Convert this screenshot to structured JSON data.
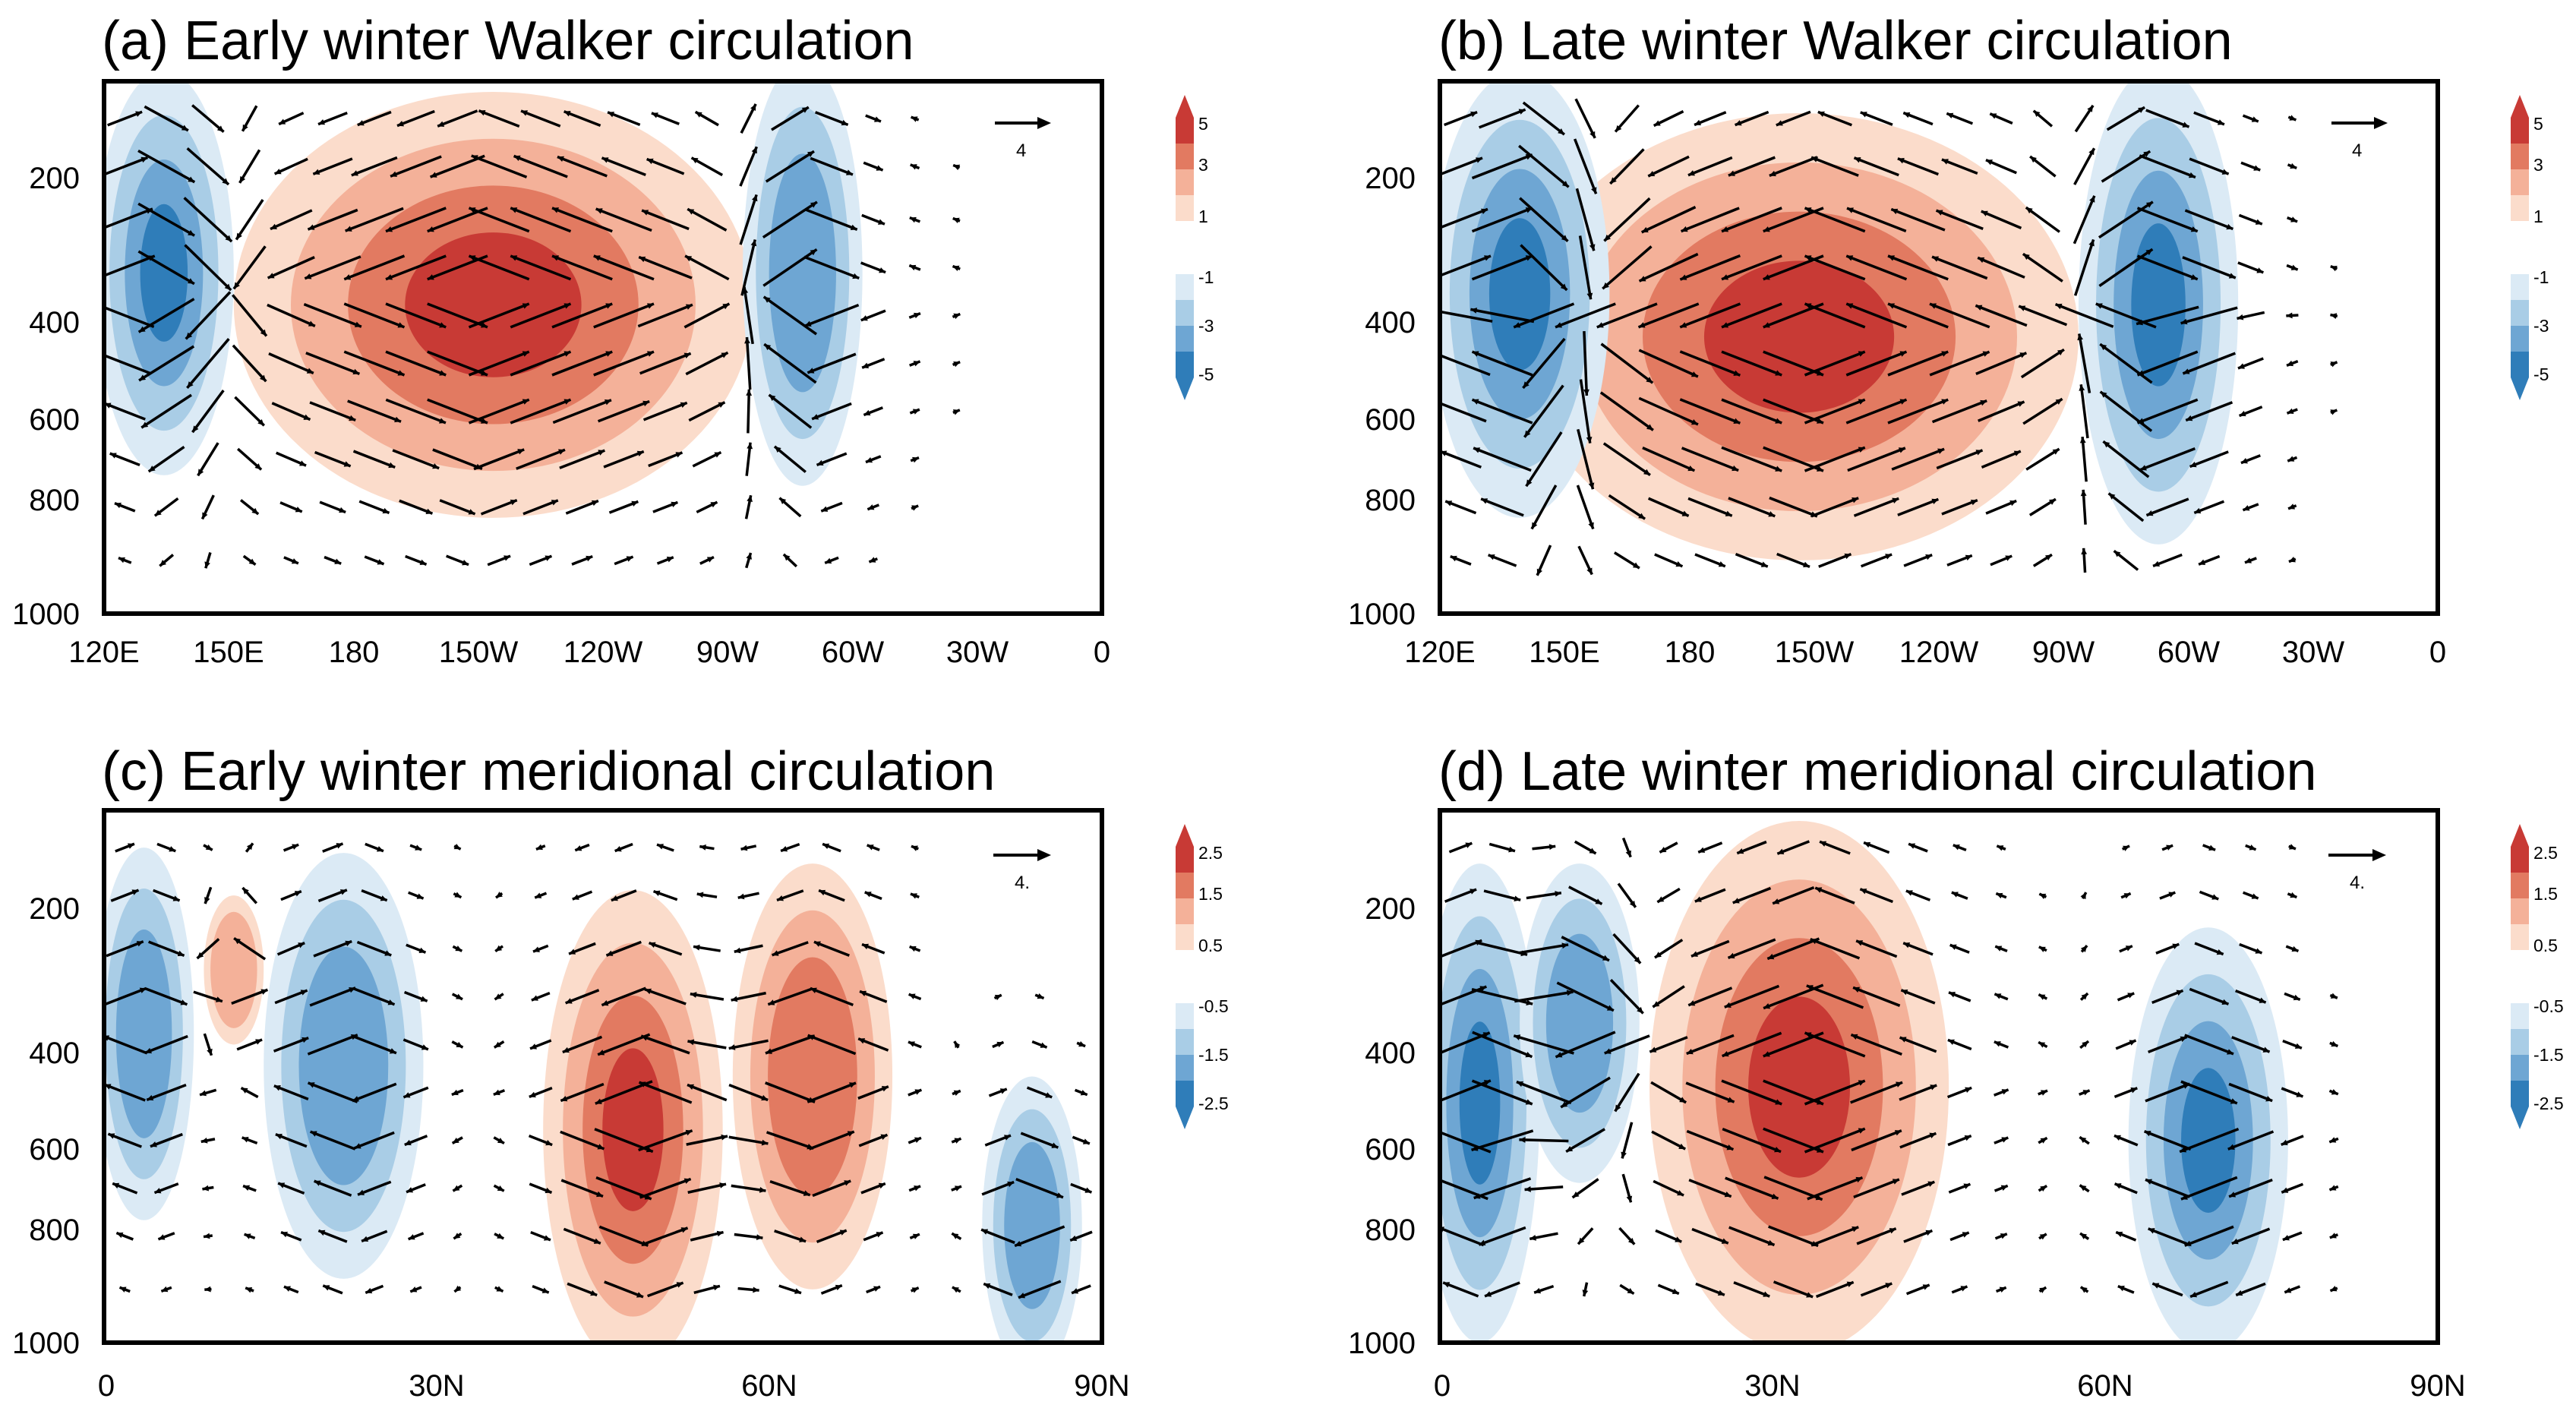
{
  "colors": {
    "neg3": "#2f7db9",
    "neg2": "#6ea6d3",
    "neg1": "#a9cde6",
    "neg0": "#dbeaf5",
    "pos0": "#fbdccb",
    "pos1": "#f4b199",
    "pos2": "#e27a61",
    "pos3": "#c83a35",
    "arrow": "#000000"
  },
  "chart_data": [
    {
      "type": "contour_vector",
      "title": "(a) Early winter Walker circulation",
      "x_ticks": [
        "120E",
        "150E",
        "180",
        "150W",
        "120W",
        "90W",
        "60W",
        "30W",
        "0"
      ],
      "x_range_deg": [
        120,
        360
      ],
      "y_ticks": [
        "200",
        "400",
        "600",
        "800",
        "1000"
      ],
      "y_range_hpa": [
        100,
        1000
      ],
      "reference_vector": "4",
      "colorbar_ticks": [
        "5",
        "3",
        "1",
        "-1",
        "-3",
        "-5"
      ],
      "features": [
        {
          "type": "warm",
          "x": 0.39,
          "y": 0.42,
          "rx": 0.26,
          "ry": 0.4,
          "amplitude": 5
        },
        {
          "type": "cold",
          "x": 0.06,
          "y": 0.36,
          "rx": 0.07,
          "ry": 0.38,
          "amplitude": 4
        },
        {
          "type": "cold",
          "x": 0.7,
          "y": 0.36,
          "rx": 0.06,
          "ry": 0.4,
          "amplitude": 3
        }
      ]
    },
    {
      "type": "contour_vector",
      "title": "(b) Late winter Walker circulation",
      "x_ticks": [
        "120E",
        "150E",
        "180",
        "150W",
        "120W",
        "90W",
        "60W",
        "30W",
        "0"
      ],
      "x_range_deg": [
        120,
        360
      ],
      "y_ticks": [
        "200",
        "400",
        "600",
        "800",
        "1000"
      ],
      "y_range_hpa": [
        100,
        1000
      ],
      "reference_vector": "4",
      "colorbar_ticks": [
        "5",
        "3",
        "1",
        "-1",
        "-3",
        "-5"
      ],
      "features": [
        {
          "type": "warm",
          "x": 0.36,
          "y": 0.48,
          "rx": 0.28,
          "ry": 0.42,
          "amplitude": 5
        },
        {
          "type": "cold",
          "x": 0.08,
          "y": 0.4,
          "rx": 0.09,
          "ry": 0.42,
          "amplitude": 4
        },
        {
          "type": "cold",
          "x": 0.72,
          "y": 0.42,
          "rx": 0.08,
          "ry": 0.45,
          "amplitude": 4
        }
      ]
    },
    {
      "type": "contour_vector",
      "title": "(c) Early winter meridional circulation",
      "x_ticks": [
        "0",
        "30N",
        "60N",
        "90N"
      ],
      "x_range_deg": [
        0,
        90
      ],
      "y_ticks": [
        "200",
        "400",
        "600",
        "800",
        "1000"
      ],
      "y_range_hpa": [
        100,
        1000
      ],
      "reference_vector": "4.",
      "colorbar_ticks": [
        "2.5",
        "1.5",
        "0.5",
        "-0.5",
        "-1.5",
        "-2.5"
      ],
      "features": [
        {
          "type": "cold",
          "x": 0.04,
          "y": 0.42,
          "rx": 0.05,
          "ry": 0.35,
          "amplitude": 3
        },
        {
          "type": "warm",
          "x": 0.13,
          "y": 0.3,
          "rx": 0.03,
          "ry": 0.14,
          "amplitude": 2
        },
        {
          "type": "cold",
          "x": 0.24,
          "y": 0.48,
          "rx": 0.08,
          "ry": 0.4,
          "amplitude": 3
        },
        {
          "type": "warm",
          "x": 0.53,
          "y": 0.6,
          "rx": 0.09,
          "ry": 0.45,
          "amplitude": 3.5
        },
        {
          "type": "warm",
          "x": 0.71,
          "y": 0.5,
          "rx": 0.08,
          "ry": 0.4,
          "amplitude": 3
        },
        {
          "type": "cold",
          "x": 0.93,
          "y": 0.78,
          "rx": 0.05,
          "ry": 0.28,
          "amplitude": 3
        }
      ]
    },
    {
      "type": "contour_vector",
      "title": "(d) Late winter meridional circulation",
      "x_ticks": [
        "0",
        "30N",
        "60N",
        "90N"
      ],
      "x_range_deg": [
        0,
        90
      ],
      "y_ticks": [
        "200",
        "400",
        "600",
        "800",
        "1000"
      ],
      "y_range_hpa": [
        100,
        1000
      ],
      "reference_vector": "4.",
      "colorbar_ticks": [
        "2.5",
        "1.5",
        "0.5",
        "-0.5",
        "-1.5",
        "-2.5"
      ],
      "features": [
        {
          "type": "cold",
          "x": 0.04,
          "y": 0.55,
          "rx": 0.06,
          "ry": 0.45,
          "amplitude": 4
        },
        {
          "type": "cold",
          "x": 0.14,
          "y": 0.4,
          "rx": 0.06,
          "ry": 0.3,
          "amplitude": 3
        },
        {
          "type": "warm",
          "x": 0.36,
          "y": 0.52,
          "rx": 0.15,
          "ry": 0.5,
          "amplitude": 4
        },
        {
          "type": "cold",
          "x": 0.77,
          "y": 0.62,
          "rx": 0.08,
          "ry": 0.4,
          "amplitude": 3.5
        }
      ]
    }
  ]
}
